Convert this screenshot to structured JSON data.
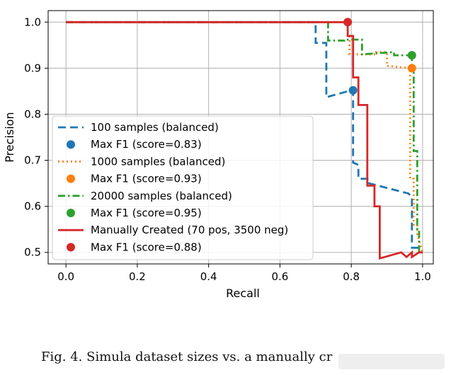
{
  "chart_data": {
    "type": "line",
    "title": "",
    "xlabel": "Recall",
    "ylabel": "Precision",
    "xlim": [
      -0.05,
      1.03
    ],
    "ylim": [
      0.475,
      1.025
    ],
    "xticks": [
      0.0,
      0.2,
      0.4,
      0.6,
      0.8,
      1.0
    ],
    "xtick_labels": [
      "0.0",
      "0.2",
      "0.4",
      "0.6",
      "0.8",
      "1.0"
    ],
    "yticks": [
      0.5,
      0.6,
      0.7,
      0.8,
      0.9,
      1.0
    ],
    "ytick_labels": [
      "0.5",
      "0.6",
      "0.7",
      "0.8",
      "0.9",
      "1.0"
    ],
    "grid": true,
    "legend_position": "lower-left",
    "series": [
      {
        "name": "100 samples (balanced)",
        "color": "#1f77b4",
        "style": "dashed",
        "x": [
          0.0,
          0.7,
          0.7,
          0.73,
          0.73,
          0.8,
          0.8,
          0.805,
          0.805,
          0.82,
          0.82,
          0.85,
          0.85,
          0.9,
          0.9,
          0.96,
          0.96,
          0.97,
          0.97,
          1.0
        ],
        "y": [
          1.0,
          1.0,
          0.955,
          0.955,
          0.837,
          0.852,
          0.852,
          0.852,
          0.695,
          0.69,
          0.66,
          0.66,
          0.65,
          0.64,
          0.64,
          0.628,
          0.628,
          0.62,
          0.51,
          0.51
        ]
      },
      {
        "name": "Max F1 (score=0.83)",
        "color": "#1f77b4",
        "marker": true,
        "x": [
          0.805
        ],
        "y": [
          0.852
        ]
      },
      {
        "name": "1000 samples (balanced)",
        "color": "#ff7f0e",
        "style": "dotted",
        "x": [
          0.0,
          0.79,
          0.79,
          0.795,
          0.795,
          0.87,
          0.87,
          0.9,
          0.9,
          0.965,
          0.965,
          0.975,
          0.975,
          0.985,
          0.985,
          1.0
        ],
        "y": [
          1.0,
          1.0,
          0.97,
          0.97,
          0.93,
          0.93,
          0.935,
          0.935,
          0.905,
          0.9,
          0.66,
          0.66,
          0.56,
          0.56,
          0.54,
          0.5
        ]
      },
      {
        "name": "Max F1 (score=0.93)",
        "color": "#ff7f0e",
        "marker": true,
        "x": [
          0.97
        ],
        "y": [
          0.9
        ]
      },
      {
        "name": "20000 samples (balanced)",
        "color": "#2ca02c",
        "style": "dashdot",
        "x": [
          0.0,
          0.735,
          0.735,
          0.78,
          0.78,
          0.83,
          0.83,
          0.92,
          0.92,
          0.97,
          0.97,
          0.975,
          0.975,
          0.985,
          0.985,
          0.99,
          0.99,
          1.0
        ],
        "y": [
          1.0,
          1.0,
          0.96,
          0.96,
          0.962,
          0.962,
          0.93,
          0.935,
          0.928,
          0.928,
          0.89,
          0.89,
          0.72,
          0.72,
          0.55,
          0.55,
          0.5,
          0.5
        ]
      },
      {
        "name": "Max F1 (score=0.95)",
        "color": "#2ca02c",
        "marker": true,
        "x": [
          0.97
        ],
        "y": [
          0.928
        ]
      },
      {
        "name": "Manually Created (70 pos, 3500 neg)",
        "color": "#d62728",
        "style": "solid",
        "x": [
          0.0,
          0.79,
          0.79,
          0.805,
          0.805,
          0.82,
          0.82,
          0.845,
          0.845,
          0.865,
          0.865,
          0.88,
          0.88,
          0.94,
          0.94,
          0.955,
          0.955,
          0.97,
          0.97,
          0.99,
          0.99,
          1.0
        ],
        "y": [
          1.0,
          1.0,
          0.97,
          0.97,
          0.88,
          0.88,
          0.82,
          0.82,
          0.645,
          0.645,
          0.6,
          0.6,
          0.487,
          0.5,
          0.5,
          0.49,
          0.49,
          0.5,
          0.49,
          0.5,
          0.5,
          0.5
        ]
      },
      {
        "name": "Max F1 (score=0.88)",
        "color": "#d62728",
        "marker": true,
        "x": [
          0.79
        ],
        "y": [
          1.0
        ]
      }
    ]
  },
  "caption": {
    "text": "Fig. 4.  Simula dataset sizes vs. a manually cr"
  }
}
